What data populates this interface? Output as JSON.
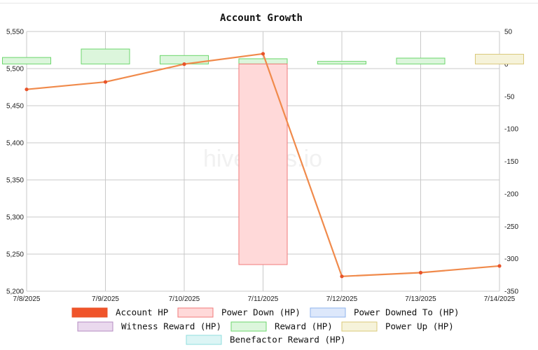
{
  "chart_data": {
    "type": "bar+line",
    "title": "Account Growth",
    "watermark": "hivestats.io",
    "categories": [
      "7/8/2025",
      "7/9/2025",
      "7/10/2025",
      "7/11/2025",
      "7/12/2025",
      "7/13/2025",
      "7/14/2025"
    ],
    "left_axis": {
      "min": 5200,
      "max": 5550,
      "ticks": [
        "5,200",
        "5,250",
        "5,300",
        "5,350",
        "5,400",
        "5,450",
        "5,500",
        "5,550"
      ]
    },
    "right_axis": {
      "min": -350,
      "max": 50,
      "ticks": [
        "-350",
        "-300",
        "-250",
        "-200",
        "-150",
        "-100",
        "-50",
        "0",
        "50"
      ]
    },
    "grid": true,
    "legend_position": "bottom",
    "line_series": {
      "name": "Account HP",
      "axis": "left",
      "color": "#f08a4b",
      "marker_color": "#e8532a",
      "x": [
        "7/8/2025",
        "7/9/2025",
        "7/10/2025",
        "7/11/2025",
        "7/12/2025",
        "7/13/2025",
        "7/14/2025"
      ],
      "values": [
        5472,
        5482,
        5506,
        5520,
        5220,
        5225,
        5234
      ]
    },
    "bar_series": [
      {
        "name": "Reward (HP)",
        "axis": "right",
        "fill": "#dcf6dc",
        "stroke": "#6cd66c",
        "points": [
          [
            "7/8/2025",
            10
          ],
          [
            "7/9/2025",
            23
          ],
          [
            "7/10/2025",
            13
          ],
          [
            "7/11/2025",
            8
          ],
          [
            "7/12/2025",
            4
          ],
          [
            "7/13/2025",
            9
          ]
        ]
      },
      {
        "name": "Power Down (HP)",
        "axis": "right",
        "fill": "#ffd9d9",
        "stroke": "#f07a7a",
        "points": [
          [
            "7/11/2025",
            -309
          ]
        ]
      },
      {
        "name": "Power Up (HP)",
        "axis": "right",
        "fill": "#f6f3da",
        "stroke": "#d9c87a",
        "points": [
          [
            "7/14/2025",
            15
          ]
        ]
      }
    ],
    "legend": [
      {
        "label": "Account HP",
        "fill": "#f0542a",
        "stroke": "#e8532a"
      },
      {
        "label": "Power Down (HP)",
        "fill": "#ffd9d9",
        "stroke": "#f07a7a"
      },
      {
        "label": "Power Downed To (HP)",
        "fill": "#dde8fb",
        "stroke": "#8fb3ee"
      },
      {
        "label": "Witness Reward (HP)",
        "fill": "#ead9ee",
        "stroke": "#b48cc2"
      },
      {
        "label": "Reward (HP)",
        "fill": "#dcf6dc",
        "stroke": "#6cd66c"
      },
      {
        "label": "Power Up (HP)",
        "fill": "#f6f3da",
        "stroke": "#d9c87a"
      },
      {
        "label": "Benefactor Reward (HP)",
        "fill": "#dcf5f5",
        "stroke": "#8fdede"
      }
    ]
  }
}
